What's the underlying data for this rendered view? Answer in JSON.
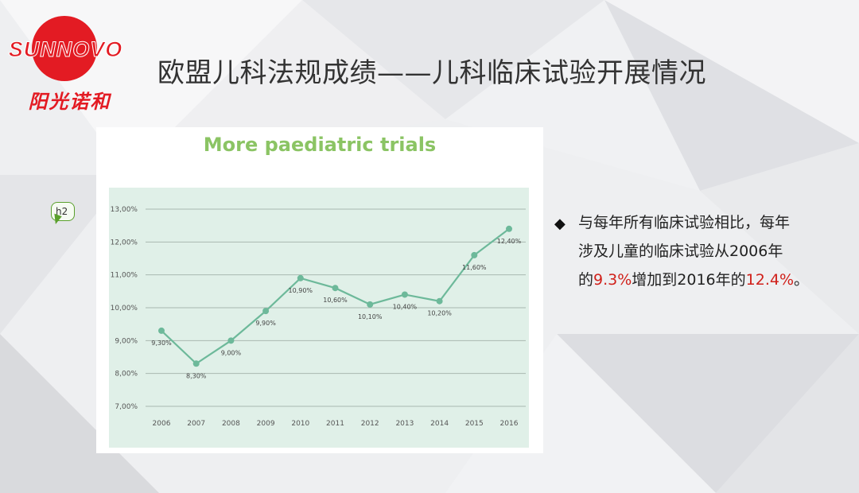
{
  "slide": {
    "title": "欧盟儿科法规成绩——儿科临床试验开展情况"
  },
  "logo": {
    "brand_text": "SUNNOVO",
    "chinese_text": "阳光诺和",
    "brand_color": "#e31b23"
  },
  "annotation_tag": "h2",
  "bullet": {
    "icon": "diamond-bullet-icon",
    "line1": "与每年所有临床试验相比，每年",
    "line2": "涉及儿童的临床试验从2006年",
    "line3_prefix": "的",
    "value_2006": "9.3%",
    "line3_mid": "增加到2016年的",
    "value_2016": "12.4%",
    "line3_suffix": "。",
    "highlight_color": "#d0201a"
  },
  "chart_data": {
    "type": "line",
    "title": "More paediatric trials",
    "xlabel": "",
    "ylabel": "",
    "x": [
      "2006",
      "2007",
      "2008",
      "2009",
      "2010",
      "2011",
      "2012",
      "2013",
      "2014",
      "2015",
      "2016"
    ],
    "series": [
      {
        "values": [
          9.3,
          8.3,
          9.0,
          9.9,
          10.9,
          10.6,
          10.1,
          10.4,
          10.2,
          11.6,
          12.4
        ],
        "labels": [
          "9,30%",
          "8,30%",
          "9,00%",
          "9,90%",
          "10,90%",
          "10,60%",
          "10,10%",
          "10,40%",
          "10,20%",
          "11,60%",
          "12,40%"
        ]
      }
    ],
    "yticks": [
      7,
      8,
      9,
      10,
      11,
      12,
      13
    ],
    "ytick_labels": [
      "7,00%",
      "8,00%",
      "9,00%",
      "10,00%",
      "11,00%",
      "12,00%",
      "13,00%"
    ],
    "ylim": [
      7,
      13
    ],
    "grid": true,
    "colors": {
      "title": "#8bc464",
      "line": "#6db99a",
      "plot_bg": "#e0f0e8",
      "grid": "#a9b8b0"
    }
  }
}
